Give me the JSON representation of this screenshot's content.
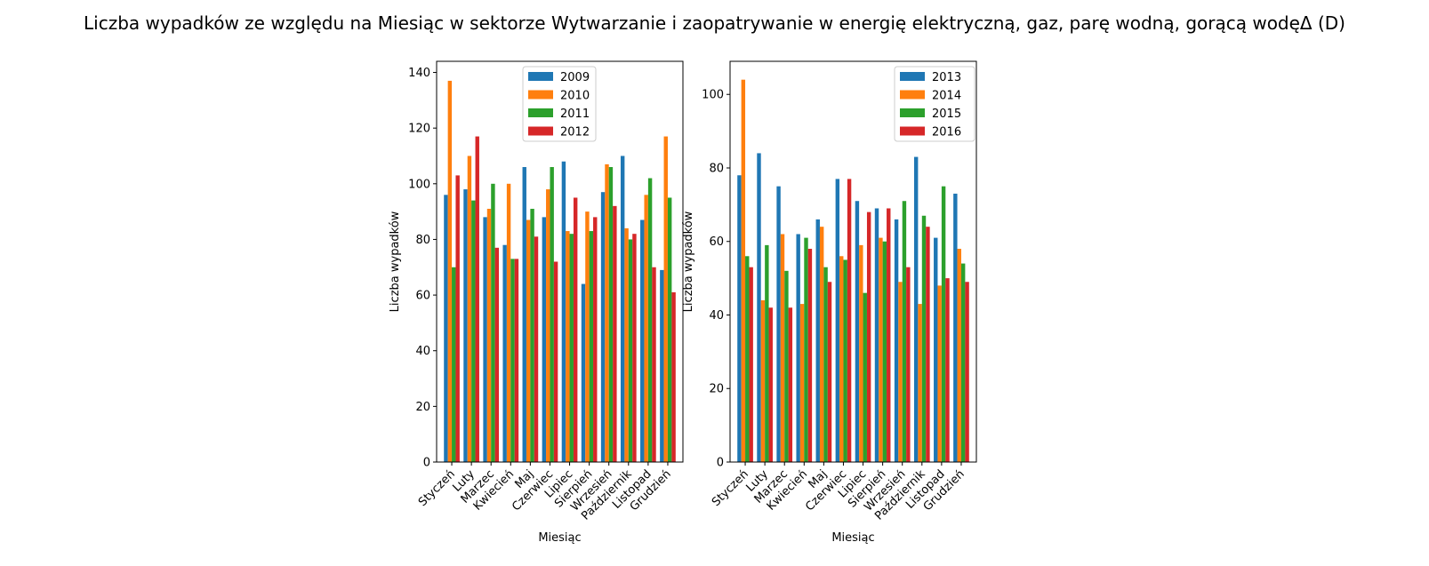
{
  "figure": {
    "title": "Liczba wypadków ze względu na Miesiąc w sektorze Wytwarzanie i zaopatrywanie w energię elektryczną, gaz, parę wodną, gorącą wodęΔ  (D)"
  },
  "chart_data": [
    {
      "type": "bar",
      "xlabel": "Miesiąc",
      "ylabel": "Liczba wypadków",
      "ylim": [
        0,
        144
      ],
      "yticks": [
        0,
        20,
        40,
        60,
        80,
        100,
        120,
        140
      ],
      "legend_position": "top-center",
      "grid": false,
      "categories": [
        "Styczeń",
        "Luty",
        "Marzec",
        "Kwiecień",
        "Maj",
        "Czerwiec",
        "Lipiec",
        "Sierpień",
        "Wrzesień",
        "Październik",
        "Listopad",
        "Grudzień"
      ],
      "series": [
        {
          "name": "2009",
          "color": "#1f77b4",
          "values": [
            96,
            98,
            88,
            78,
            106,
            88,
            108,
            64,
            97,
            110,
            87,
            69
          ]
        },
        {
          "name": "2010",
          "color": "#ff7f0e",
          "values": [
            137,
            110,
            91,
            100,
            87,
            98,
            83,
            90,
            107,
            84,
            96,
            117
          ]
        },
        {
          "name": "2011",
          "color": "#2ca02c",
          "values": [
            70,
            94,
            100,
            73,
            91,
            106,
            82,
            83,
            106,
            80,
            102,
            95
          ]
        },
        {
          "name": "2012",
          "color": "#d62728",
          "values": [
            103,
            117,
            77,
            73,
            81,
            72,
            95,
            88,
            92,
            82,
            70,
            61
          ]
        }
      ]
    },
    {
      "type": "bar",
      "xlabel": "Miesiąc",
      "ylabel": "Liczba wypadków",
      "ylim": [
        0,
        109
      ],
      "yticks": [
        0,
        20,
        40,
        60,
        80,
        100
      ],
      "legend_position": "top-right",
      "grid": false,
      "categories": [
        "Styczeń",
        "Luty",
        "Marzec",
        "Kwiecień",
        "Maj",
        "Czerwiec",
        "Lipiec",
        "Sierpień",
        "Wrzesień",
        "Październik",
        "Listopad",
        "Grudzień"
      ],
      "series": [
        {
          "name": "2013",
          "color": "#1f77b4",
          "values": [
            78,
            84,
            75,
            62,
            66,
            77,
            71,
            69,
            66,
            83,
            61,
            73
          ]
        },
        {
          "name": "2014",
          "color": "#ff7f0e",
          "values": [
            104,
            44,
            62,
            43,
            64,
            56,
            59,
            61,
            49,
            43,
            48,
            58
          ]
        },
        {
          "name": "2015",
          "color": "#2ca02c",
          "values": [
            56,
            59,
            52,
            61,
            53,
            55,
            46,
            60,
            71,
            67,
            75,
            54
          ]
        },
        {
          "name": "2016",
          "color": "#d62728",
          "values": [
            53,
            42,
            42,
            58,
            49,
            77,
            68,
            69,
            53,
            64,
            50,
            49
          ]
        }
      ]
    }
  ]
}
